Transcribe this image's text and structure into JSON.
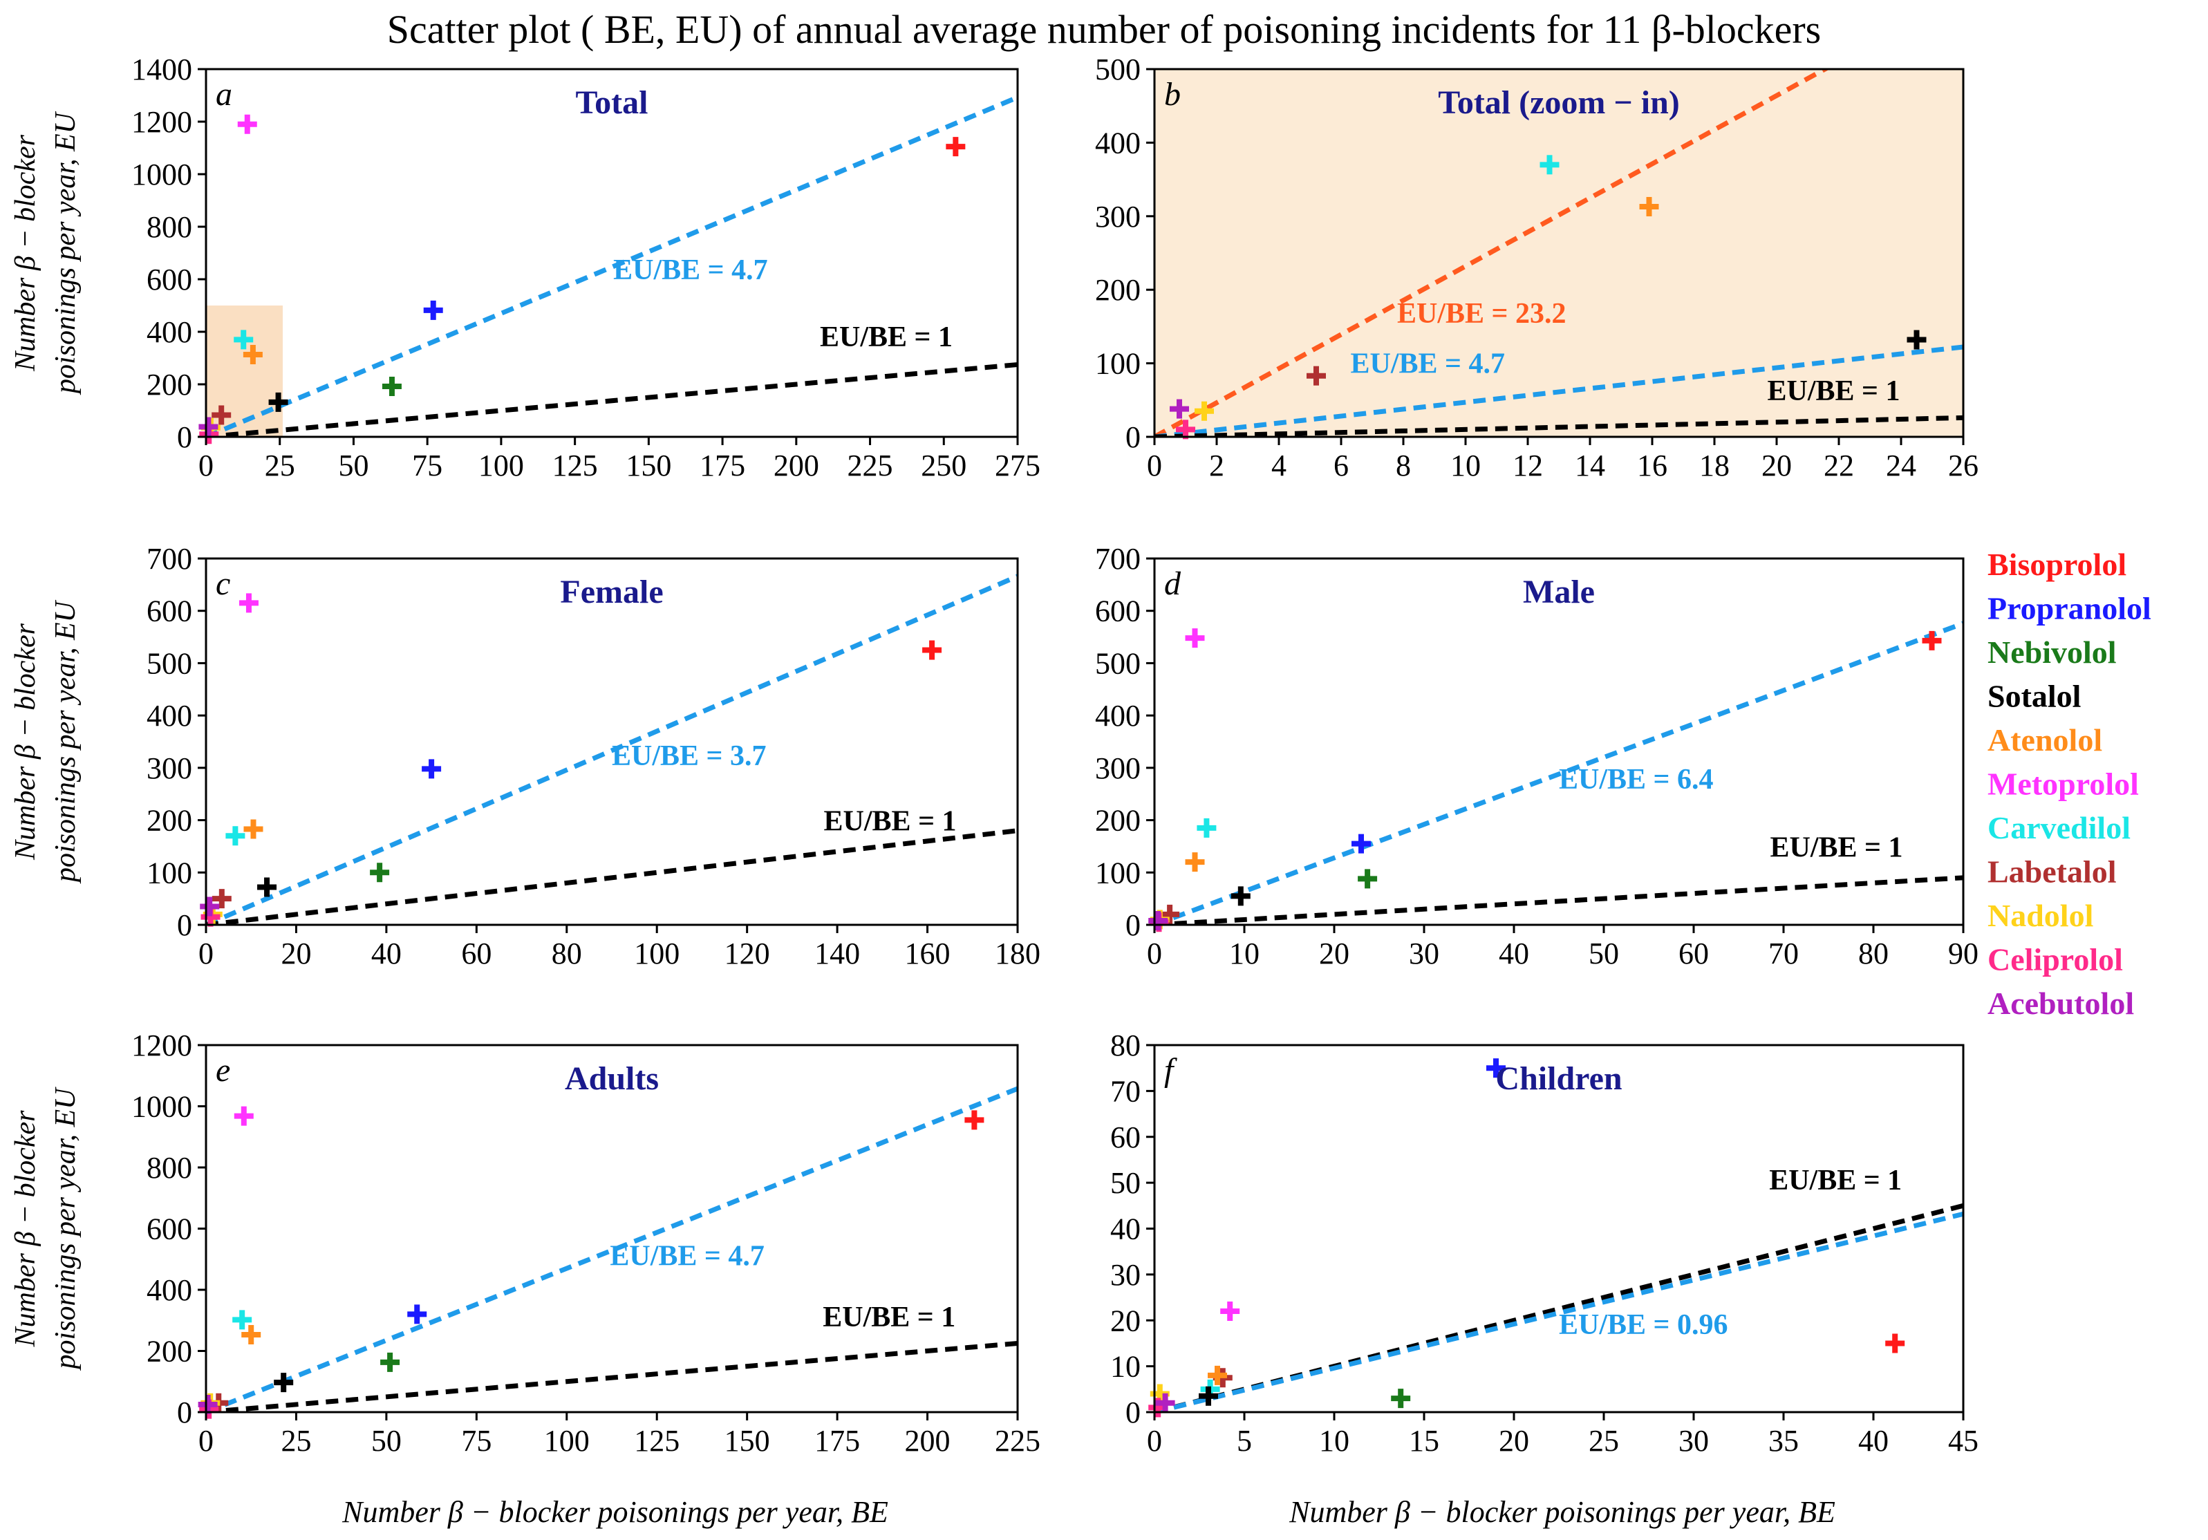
{
  "figure_title": "Scatter plot ( BE, EU) of annual average number of poisoning incidents for 11 β-blockers",
  "ylabel_line1": "Number β − blocker",
  "ylabel_line2": "poisonings per year,  EU",
  "xlabel": "Number β − blocker poisonings per year,  BE",
  "colors": {
    "title": "#1a1a8c",
    "ref_line": "#000000",
    "fit_line": "#1f9bea",
    "fit_line_zoom": "#ff5a1f",
    "zoom_fill": "#fcebd6",
    "zoom_box": "#f6c99a"
  },
  "legend": [
    {
      "name": "Bisoprolol",
      "color": "#ff1a1a"
    },
    {
      "name": "Propranolol",
      "color": "#1a1aff"
    },
    {
      "name": "Nebivolol",
      "color": "#1a7a1a"
    },
    {
      "name": "Sotalol",
      "color": "#000000"
    },
    {
      "name": "Atenolol",
      "color": "#ff8c1a"
    },
    {
      "name": "Metoprolol",
      "color": "#ff33ff"
    },
    {
      "name": "Carvedilol",
      "color": "#1ae6e6"
    },
    {
      "name": "Labetalol",
      "color": "#b03030"
    },
    {
      "name": "Nadolol",
      "color": "#ffd21a"
    },
    {
      "name": "Celiprolol",
      "color": "#ff2a8a"
    },
    {
      "name": "Acebutolol",
      "color": "#b020c0"
    }
  ],
  "chart_data": [
    {
      "id": "a",
      "type": "scatter",
      "title": "Total",
      "xlim": [
        0,
        275
      ],
      "ylim": [
        0,
        1400
      ],
      "xticks": [
        0,
        25,
        50,
        75,
        100,
        125,
        150,
        175,
        200,
        225,
        250,
        275
      ],
      "yticks": [
        0,
        200,
        400,
        600,
        800,
        1000,
        1200,
        1400
      ],
      "zoom_box": {
        "x": [
          0,
          26
        ],
        "y": [
          0,
          500
        ]
      },
      "lines": [
        {
          "label": "EU/BE = 4.7",
          "slope": 4.7,
          "style": "fit",
          "label_at": [
            138,
            600
          ]
        },
        {
          "label": "EU/BE = 1",
          "slope": 1,
          "style": "ref",
          "label_at": [
            208,
            345
          ]
        }
      ],
      "points": [
        {
          "drug": "Bisoprolol",
          "x": 254,
          "y": 1105
        },
        {
          "drug": "Propranolol",
          "x": 77,
          "y": 482
        },
        {
          "drug": "Nebivolol",
          "x": 63,
          "y": 192
        },
        {
          "drug": "Sotalol",
          "x": 24.5,
          "y": 132
        },
        {
          "drug": "Atenolol",
          "x": 15.9,
          "y": 313
        },
        {
          "drug": "Metoprolol",
          "x": 14,
          "y": 1190
        },
        {
          "drug": "Carvedilol",
          "x": 12.7,
          "y": 370
        },
        {
          "drug": "Labetalol",
          "x": 5.2,
          "y": 83
        },
        {
          "drug": "Nadolol",
          "x": 1.6,
          "y": 35
        },
        {
          "drug": "Celiprolol",
          "x": 1,
          "y": 10
        },
        {
          "drug": "Acebutolol",
          "x": 0.8,
          "y": 38
        }
      ]
    },
    {
      "id": "b",
      "type": "scatter",
      "title": "Total (zoom − in)",
      "xlim": [
        0,
        26
      ],
      "ylim": [
        0,
        500
      ],
      "xticks": [
        0,
        2,
        4,
        6,
        8,
        10,
        12,
        14,
        16,
        18,
        20,
        22,
        24,
        26
      ],
      "yticks": [
        0,
        100,
        200,
        300,
        400,
        500
      ],
      "lines": [
        {
          "label": "EU/BE = 23.2",
          "slope": 23.2,
          "style": "zoomfit",
          "label_at": [
            7.8,
            155
          ]
        },
        {
          "label": "EU/BE = 4.7",
          "slope": 4.7,
          "style": "fit",
          "label_at": [
            6.3,
            87
          ]
        },
        {
          "label": "EU/BE = 1",
          "slope": 1,
          "style": "ref",
          "label_at": [
            19.7,
            50
          ]
        }
      ],
      "points": [
        {
          "drug": "Sotalol",
          "x": 24.5,
          "y": 132
        },
        {
          "drug": "Atenolol",
          "x": 15.9,
          "y": 313
        },
        {
          "drug": "Carvedilol",
          "x": 12.7,
          "y": 370
        },
        {
          "drug": "Labetalol",
          "x": 5.2,
          "y": 83
        },
        {
          "drug": "Nadolol",
          "x": 1.6,
          "y": 35
        },
        {
          "drug": "Celiprolol",
          "x": 1,
          "y": 10
        },
        {
          "drug": "Acebutolol",
          "x": 0.8,
          "y": 38
        }
      ]
    },
    {
      "id": "c",
      "type": "scatter",
      "title": "Female",
      "xlim": [
        0,
        180
      ],
      "ylim": [
        0,
        700
      ],
      "xticks": [
        0,
        20,
        40,
        60,
        80,
        100,
        120,
        140,
        160,
        180
      ],
      "yticks": [
        0,
        100,
        200,
        300,
        400,
        500,
        600,
        700
      ],
      "lines": [
        {
          "label": "EU/BE = 3.7",
          "slope": 3.7,
          "style": "fit",
          "label_at": [
            90,
            305
          ]
        },
        {
          "label": "EU/BE = 1",
          "slope": 1,
          "style": "ref",
          "label_at": [
            137,
            180
          ]
        }
      ],
      "points": [
        {
          "drug": "Bisoprolol",
          "x": 161,
          "y": 525
        },
        {
          "drug": "Propranolol",
          "x": 50,
          "y": 298
        },
        {
          "drug": "Nebivolol",
          "x": 38.5,
          "y": 100
        },
        {
          "drug": "Sotalol",
          "x": 13.5,
          "y": 72
        },
        {
          "drug": "Atenolol",
          "x": 10.5,
          "y": 183
        },
        {
          "drug": "Metoprolol",
          "x": 9.5,
          "y": 615
        },
        {
          "drug": "Carvedilol",
          "x": 6.5,
          "y": 170
        },
        {
          "drug": "Labetalol",
          "x": 3.5,
          "y": 50
        },
        {
          "drug": "Nadolol",
          "x": 1.5,
          "y": 20
        },
        {
          "drug": "Celiprolol",
          "x": 1,
          "y": 15
        },
        {
          "drug": "Acebutolol",
          "x": 0.8,
          "y": 35
        }
      ]
    },
    {
      "id": "d",
      "type": "scatter",
      "title": "Male",
      "xlim": [
        0,
        90
      ],
      "ylim": [
        0,
        700
      ],
      "xticks": [
        0,
        10,
        20,
        30,
        40,
        50,
        60,
        70,
        80,
        90
      ],
      "yticks": [
        0,
        100,
        200,
        300,
        400,
        500,
        600,
        700
      ],
      "lines": [
        {
          "label": "EU/BE = 6.4",
          "slope": 6.4,
          "style": "fit",
          "label_at": [
            45,
            260
          ]
        },
        {
          "label": "EU/BE = 1",
          "slope": 1,
          "style": "ref",
          "label_at": [
            68.5,
            130
          ]
        }
      ],
      "points": [
        {
          "drug": "Bisoprolol",
          "x": 86.5,
          "y": 543
        },
        {
          "drug": "Propranolol",
          "x": 23,
          "y": 155
        },
        {
          "drug": "Nebivolol",
          "x": 23.7,
          "y": 88
        },
        {
          "drug": "Sotalol",
          "x": 9.6,
          "y": 55
        },
        {
          "drug": "Atenolol",
          "x": 4.5,
          "y": 120
        },
        {
          "drug": "Metoprolol",
          "x": 4.5,
          "y": 548
        },
        {
          "drug": "Carvedilol",
          "x": 5.8,
          "y": 185
        },
        {
          "drug": "Labetalol",
          "x": 1.7,
          "y": 20
        },
        {
          "drug": "Nadolol",
          "x": 0.6,
          "y": 10
        },
        {
          "drug": "Celiprolol",
          "x": 0.5,
          "y": 5
        },
        {
          "drug": "Acebutolol",
          "x": 0.4,
          "y": 8
        }
      ]
    },
    {
      "id": "e",
      "type": "scatter",
      "title": "Adults",
      "xlim": [
        0,
        225
      ],
      "ylim": [
        0,
        1200
      ],
      "xticks": [
        0,
        25,
        50,
        75,
        100,
        125,
        150,
        175,
        200,
        225
      ],
      "yticks": [
        0,
        200,
        400,
        600,
        800,
        1000,
        1200
      ],
      "lines": [
        {
          "label": "EU/BE = 4.7",
          "slope": 4.7,
          "style": "fit",
          "label_at": [
            112,
            480
          ]
        },
        {
          "label": "EU/BE = 1",
          "slope": 1,
          "style": "ref",
          "label_at": [
            171,
            280
          ]
        }
      ],
      "points": [
        {
          "drug": "Bisoprolol",
          "x": 213,
          "y": 955
        },
        {
          "drug": "Propranolol",
          "x": 58.5,
          "y": 320
        },
        {
          "drug": "Nebivolol",
          "x": 51,
          "y": 163
        },
        {
          "drug": "Sotalol",
          "x": 21.5,
          "y": 97
        },
        {
          "drug": "Atenolol",
          "x": 12.5,
          "y": 253
        },
        {
          "drug": "Metoprolol",
          "x": 10.5,
          "y": 968
        },
        {
          "drug": "Carvedilol",
          "x": 10,
          "y": 302
        },
        {
          "drug": "Labetalol",
          "x": 3.5,
          "y": 30
        },
        {
          "drug": "Nadolol",
          "x": 1.2,
          "y": 30
        },
        {
          "drug": "Celiprolol",
          "x": 0.8,
          "y": 10
        },
        {
          "drug": "Acebutolol",
          "x": 0.5,
          "y": 25
        }
      ]
    },
    {
      "id": "f",
      "type": "scatter",
      "title": "Children",
      "xlim": [
        0,
        45
      ],
      "ylim": [
        0,
        80
      ],
      "xticks": [
        0,
        5,
        10,
        15,
        20,
        25,
        30,
        35,
        40,
        45
      ],
      "yticks": [
        0,
        10,
        20,
        30,
        40,
        50,
        60,
        70,
        80
      ],
      "lines": [
        {
          "label": "EU/BE = 1",
          "slope": 1,
          "style": "ref",
          "label_at": [
            34.2,
            48.5
          ]
        },
        {
          "label": "EU/BE = 0.96",
          "slope": 0.96,
          "style": "fit",
          "label_at": [
            22.5,
            17
          ]
        }
      ],
      "points": [
        {
          "drug": "Propranolol",
          "x": 19,
          "y": 75
        },
        {
          "drug": "Bisoprolol",
          "x": 41.2,
          "y": 15
        },
        {
          "drug": "Metoprolol",
          "x": 4.2,
          "y": 22
        },
        {
          "drug": "Nebivolol",
          "x": 13.7,
          "y": 3
        },
        {
          "drug": "Labetalol",
          "x": 3.8,
          "y": 7.5
        },
        {
          "drug": "Atenolol",
          "x": 3.5,
          "y": 8
        },
        {
          "drug": "Carvedilol",
          "x": 3.1,
          "y": 5
        },
        {
          "drug": "Sotalol",
          "x": 3,
          "y": 3.5
        },
        {
          "drug": "Nadolol",
          "x": 0.3,
          "y": 4
        },
        {
          "drug": "Celiprolol",
          "x": 0.2,
          "y": 1
        },
        {
          "drug": "Acebutolol",
          "x": 0.6,
          "y": 2
        }
      ]
    }
  ]
}
